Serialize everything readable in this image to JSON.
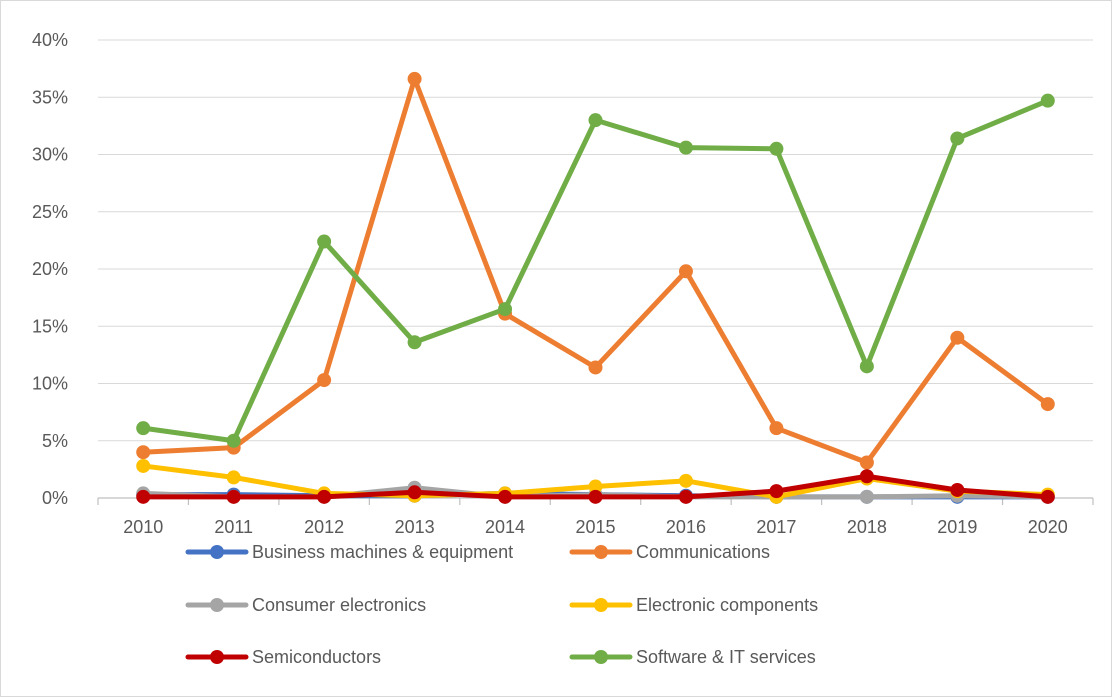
{
  "chart_data": {
    "type": "line",
    "title": "",
    "xlabel": "",
    "ylabel": "",
    "categories": [
      "2010",
      "2011",
      "2012",
      "2013",
      "2014",
      "2015",
      "2016",
      "2017",
      "2018",
      "2019",
      "2020"
    ],
    "ylim": [
      0,
      40
    ],
    "y_ticks": [
      "0%",
      "5%",
      "10%",
      "15%",
      "20%",
      "25%",
      "30%",
      "35%",
      "40%"
    ],
    "y_tick_values": [
      0,
      5,
      10,
      15,
      20,
      25,
      30,
      35,
      40
    ],
    "grid": true,
    "legend_position": "bottom",
    "series": [
      {
        "name": "Business machines & equipment",
        "color": "#4472C4",
        "values": [
          0.3,
          0.3,
          0.2,
          0.2,
          0.4,
          0.3,
          0.2,
          0.1,
          0.1,
          0.1,
          0.1
        ]
      },
      {
        "name": "Communications",
        "color": "#ED7D31",
        "values": [
          4.0,
          4.4,
          10.3,
          36.6,
          16.1,
          11.4,
          19.8,
          6.1,
          3.1,
          14.0,
          8.2
        ]
      },
      {
        "name": "Consumer electronics",
        "color": "#A5A5A5",
        "values": [
          0.4,
          0.1,
          0.1,
          0.9,
          0.1,
          0.3,
          0.1,
          0.1,
          0.1,
          0.2,
          0.1
        ]
      },
      {
        "name": "Electronic components",
        "color": "#FFC000",
        "values": [
          2.8,
          1.8,
          0.4,
          0.2,
          0.4,
          1.0,
          1.5,
          0.1,
          1.7,
          0.6,
          0.3
        ]
      },
      {
        "name": "Semiconductors",
        "color": "#C00000",
        "values": [
          0.1,
          0.1,
          0.1,
          0.5,
          0.1,
          0.1,
          0.1,
          0.6,
          1.9,
          0.7,
          0.1
        ]
      },
      {
        "name": "Software & IT services",
        "color": "#70AD47",
        "values": [
          6.1,
          5.0,
          22.4,
          13.6,
          16.5,
          33.0,
          30.6,
          30.5,
          11.5,
          31.4,
          34.7
        ]
      }
    ]
  }
}
